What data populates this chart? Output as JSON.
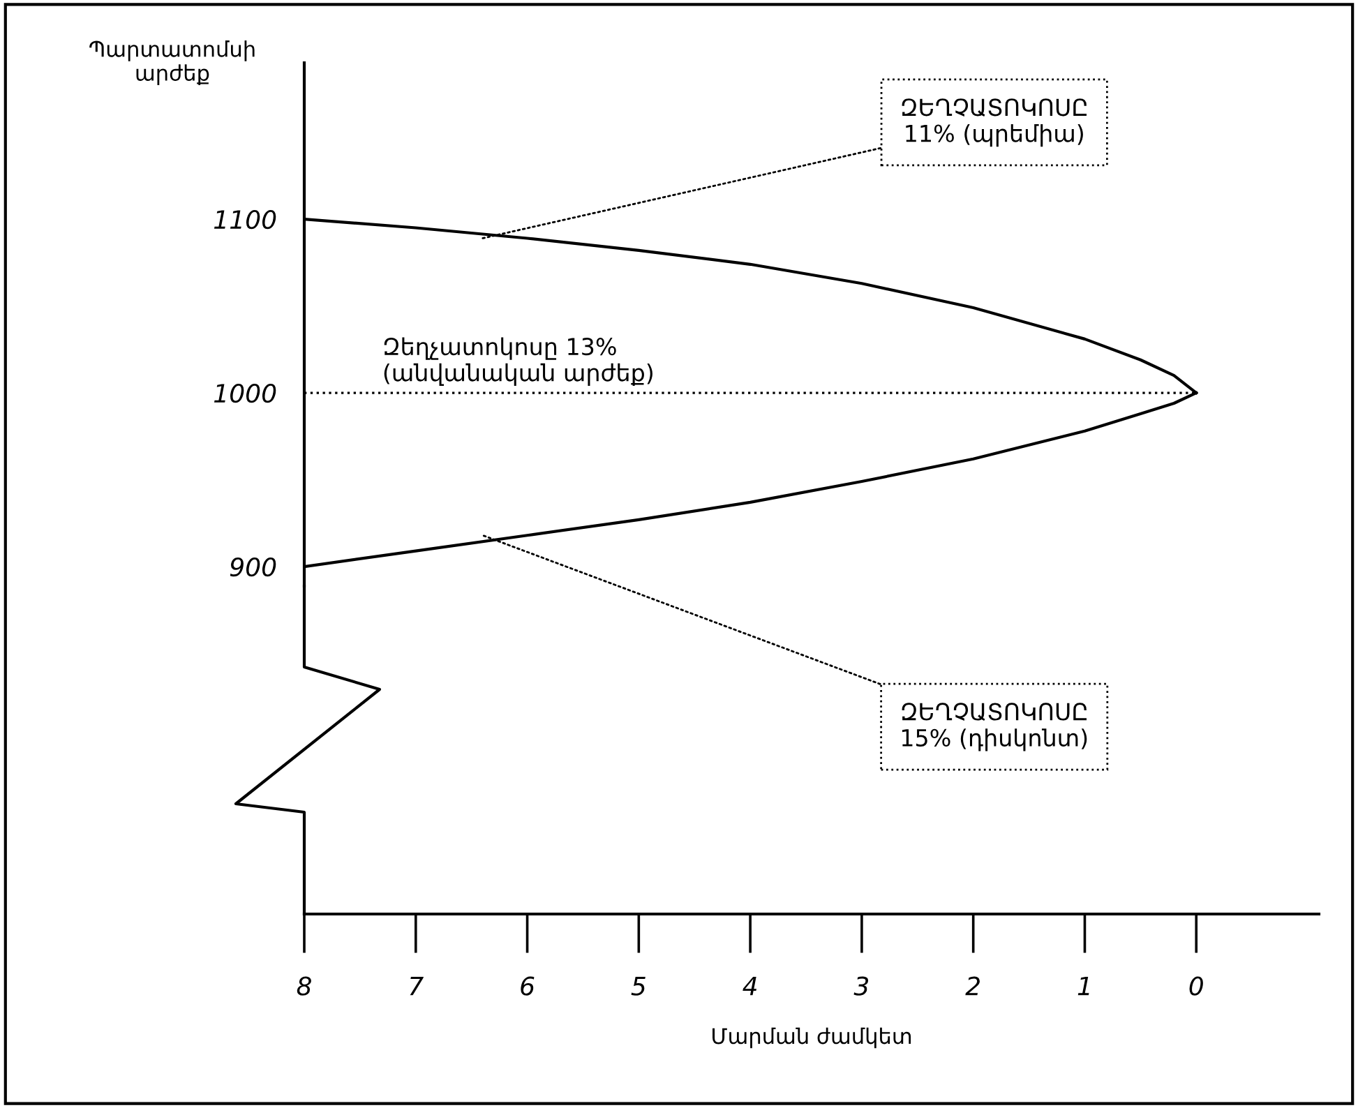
{
  "chart_data": {
    "type": "line",
    "xlabel": "Մարման ժամկետ",
    "ylabel": "Պարտատոմսի\nարժեք",
    "x": [
      8,
      7,
      6,
      5,
      4,
      3,
      2,
      1,
      0.5,
      0.2,
      0
    ],
    "series": [
      {
        "color": "#000000",
        "values": [
          1100,
          1095,
          1089,
          1082,
          1074,
          1063,
          1049,
          1031,
          1019,
          1010,
          1000
        ]
      },
      {
        "color": "#000000",
        "values": [
          900,
          909,
          918,
          927,
          937,
          949,
          962,
          978,
          988,
          994,
          1000
        ]
      }
    ],
    "xlim": [
      8,
      -1.1
    ],
    "xticks": [
      8,
      7,
      6,
      5,
      4,
      3,
      2,
      1,
      0
    ],
    "ylim": [
      700,
      1190
    ],
    "yticks": [
      900,
      1000,
      1100
    ],
    "ref_lines": [
      {
        "axis": "y",
        "value": 1000,
        "label": "Զեղչատոկոսը 13%\n(անվանական արժեք)",
        "line_style": "dotted",
        "color": "#000000"
      }
    ],
    "annotations": [
      {
        "text": "ԶԵՂՉԱՏՈԿՈՍԸ\n11% (պրեմիա)",
        "x": 6.4,
        "y": 1089
      },
      {
        "text": "ԶԵՂՉԱՏՈԿՈՍԸ\n15% (դիսկոնտ)",
        "x": 6.4,
        "y": 918
      }
    ],
    "marker": "none",
    "line_style": "solid",
    "grid": false,
    "legend": false
  }
}
